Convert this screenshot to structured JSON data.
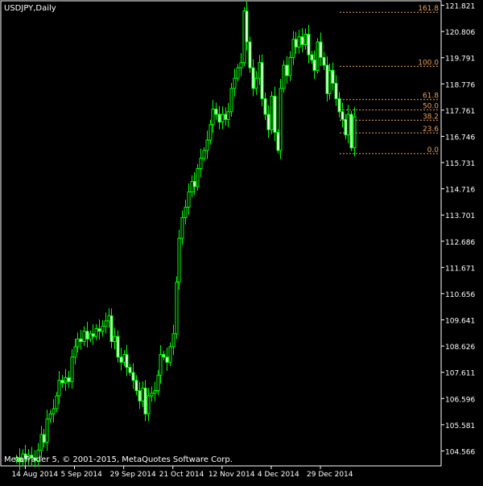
{
  "chart_data": {
    "type": "candlestick",
    "symbol_label": "USDJPY,Daily",
    "copyright": "MetaTrader 5, © 2001-2015, MetaQuotes Software Corp.",
    "ylim": [
      104.05,
      121.9
    ],
    "y_ticks": [
      "121.821",
      "120.806",
      "119.791",
      "118.776",
      "117.761",
      "116.746",
      "115.731",
      "114.716",
      "113.701",
      "112.686",
      "111.671",
      "110.656",
      "109.641",
      "108.626",
      "107.611",
      "106.596",
      "105.581",
      "104.566"
    ],
    "x_ticks": [
      {
        "label": "14 Aug 2014",
        "bar": 3
      },
      {
        "label": "5 Sep 2014",
        "bar": 19
      },
      {
        "label": "29 Sep 2014",
        "bar": 35
      },
      {
        "label": "21 Oct 2014",
        "bar": 51
      },
      {
        "label": "12 Nov 2014",
        "bar": 67
      },
      {
        "label": "4 Dec 2014",
        "bar": 83
      },
      {
        "label": "29 Dec 2014",
        "bar": 99
      }
    ],
    "fibonacci": {
      "color": "#e8a15a",
      "levels": [
        {
          "label": "161.8",
          "value": 121.55
        },
        {
          "label": "100.0",
          "value": 119.46
        },
        {
          "label": "61.8",
          "value": 118.17
        },
        {
          "label": "50.0",
          "value": 117.77
        },
        {
          "label": "38.2",
          "value": 117.37
        },
        {
          "label": "23.6",
          "value": 116.88
        },
        {
          "label": "0.0",
          "value": 116.08
        }
      ]
    },
    "candle_color": "#00ff00",
    "closes": [
      104.3,
      104.15,
      104.45,
      104.25,
      104.4,
      104.3,
      104.2,
      104.6,
      105.2,
      104.9,
      105.8,
      106.0,
      106.2,
      106.7,
      107.3,
      107.2,
      107.4,
      107.25,
      108.2,
      108.6,
      108.9,
      108.8,
      109.2,
      108.9,
      109.1,
      109.0,
      109.3,
      109.2,
      109.4,
      109.6,
      109.8,
      108.8,
      109.0,
      108.2,
      108.0,
      108.3,
      107.8,
      107.6,
      107.3,
      106.9,
      106.5,
      107.0,
      106.0,
      106.7,
      106.8,
      106.9,
      107.5,
      108.3,
      108.2,
      108.0,
      108.6,
      109.1,
      111.1,
      112.8,
      113.6,
      114.0,
      114.6,
      115.0,
      114.8,
      115.5,
      115.9,
      116.2,
      116.6,
      117.2,
      117.8,
      117.6,
      117.3,
      117.6,
      117.4,
      117.7,
      118.6,
      119.0,
      119.4,
      119.6,
      121.6,
      120.4,
      119.4,
      118.6,
      119.0,
      119.6,
      118.2,
      117.6,
      117.0,
      118.3,
      116.9,
      116.2,
      118.6,
      119.5,
      119.1,
      119.8,
      120.5,
      120.2,
      120.6,
      120.3,
      120.7,
      119.9,
      119.7,
      119.3,
      120.4,
      119.8,
      119.5,
      118.4,
      119.3,
      118.8,
      118.2,
      117.7,
      117.4,
      116.8,
      117.6,
      116.3,
      117.5
    ]
  }
}
